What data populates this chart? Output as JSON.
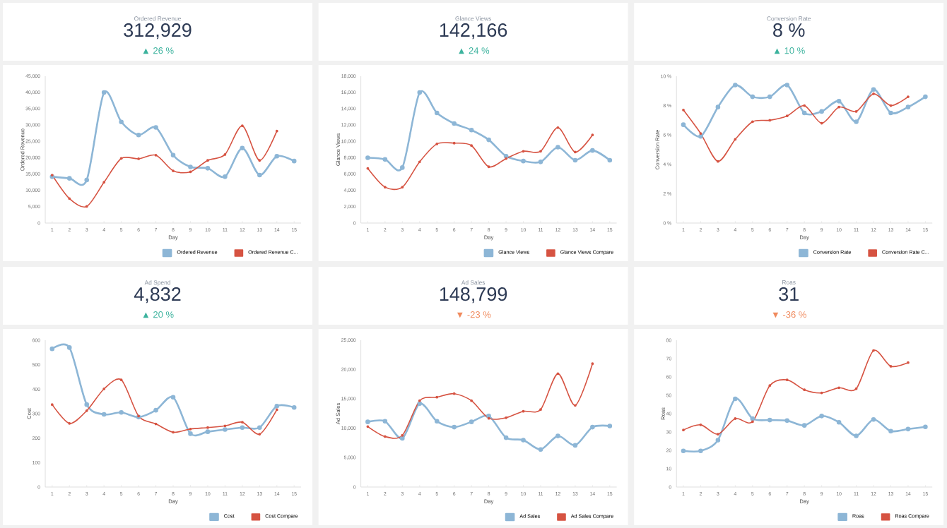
{
  "chart_data": [
    {
      "type": "other",
      "title": "Ordered Revenue",
      "subtitle": "312,929",
      "annotations": [
        "▲ 26 %"
      ],
      "color": "#3db39e"
    },
    {
      "type": "other",
      "title": "Glance Views",
      "subtitle": "142,166",
      "annotations": [
        "▲ 24 %"
      ],
      "color": "#3db39e"
    },
    {
      "type": "other",
      "title": "Conversion Rate",
      "subtitle": "8 %",
      "annotations": [
        "▲ 10 %"
      ],
      "color": "#3db39e"
    },
    {
      "type": "line",
      "xlabel": "Day",
      "ylabel": "Ordered Revenue",
      "categories": [
        "1",
        "2",
        "3",
        "4",
        "5",
        "6",
        "7",
        "8",
        "9",
        "10",
        "11",
        "12",
        "13",
        "14",
        "15"
      ],
      "ylim": [
        0,
        45000
      ],
      "yticks": [
        0,
        {
          "value": 5000,
          "label": "5,000"
        },
        {
          "value": 10000,
          "label": "10,000"
        },
        {
          "value": 15000,
          "label": "15,000"
        },
        {
          "value": 20000,
          "label": "20,000"
        },
        {
          "value": 25000,
          "label": "25,000"
        },
        {
          "value": 30000,
          "label": "30,000"
        },
        {
          "value": 35000,
          "label": "35,000"
        },
        {
          "value": 40000,
          "label": "40,000"
        },
        {
          "value": 45000,
          "label": "45,000"
        }
      ],
      "marker": "circle",
      "legend": "bottom right",
      "series": [
        {
          "name": "Ordered Revenue",
          "color": "#8db6d6",
          "values": [
            14200,
            13700,
            13200,
            40000,
            31000,
            27000,
            29300,
            20800,
            17200,
            16800,
            14200,
            23000,
            14700,
            20500,
            19000
          ]
        },
        {
          "name": "Ordered Revenue C...",
          "color": "#d65342",
          "values": [
            14700,
            7500,
            5100,
            12500,
            19800,
            19700,
            20800,
            16000,
            15700,
            19200,
            21000,
            29800,
            19200,
            28200,
            null
          ]
        }
      ]
    },
    {
      "type": "line",
      "xlabel": "Day",
      "ylabel": "Glance Views",
      "categories": [
        "1",
        "2",
        "3",
        "4",
        "5",
        "6",
        "7",
        "8",
        "9",
        "10",
        "11",
        "12",
        "13",
        "14",
        "15"
      ],
      "ylim": [
        0,
        18000
      ],
      "yticks": [
        0,
        {
          "value": 2000,
          "label": "2,000"
        },
        {
          "value": 4000,
          "label": "4,000"
        },
        {
          "value": 6000,
          "label": "6,000"
        },
        {
          "value": 8000,
          "label": "8,000"
        },
        {
          "value": 10000,
          "label": "10,000"
        },
        {
          "value": 12000,
          "label": "12,000"
        },
        {
          "value": 14000,
          "label": "14,000"
        },
        {
          "value": 16000,
          "label": "16,000"
        },
        {
          "value": 18000,
          "label": "18,000"
        }
      ],
      "marker": "circle",
      "legend": "bottom right",
      "series": [
        {
          "name": "Glance Views",
          "color": "#8db6d6",
          "values": [
            8000,
            7800,
            6800,
            16000,
            13500,
            12200,
            11400,
            10200,
            8200,
            7600,
            7500,
            9300,
            7700,
            8900,
            7700
          ]
        },
        {
          "name": "Glance Views Compare",
          "color": "#d65342",
          "values": [
            6700,
            4400,
            4400,
            7500,
            9700,
            9800,
            9500,
            6900,
            7900,
            8800,
            8800,
            11700,
            8700,
            10800,
            null
          ]
        }
      ]
    },
    {
      "type": "line",
      "xlabel": "Day",
      "ylabel": "Conversion Rate",
      "categories": [
        "1",
        "2",
        "3",
        "4",
        "5",
        "6",
        "7",
        "8",
        "9",
        "10",
        "11",
        "12",
        "13",
        "14",
        "15"
      ],
      "ylim": [
        0,
        10
      ],
      "yticks": [
        {
          "value": 0,
          "label": "0 %"
        },
        {
          "value": 2,
          "label": "2 %"
        },
        {
          "value": 4,
          "label": "4 %"
        },
        {
          "value": 6,
          "label": "6 %"
        },
        {
          "value": 8,
          "label": "8 %"
        },
        {
          "value": 10,
          "label": "10 %"
        }
      ],
      "marker": "circle",
      "legend": "bottom right",
      "series": [
        {
          "name": "Conversion Rate",
          "color": "#8db6d6",
          "values": [
            6.7,
            5.9,
            7.9,
            9.4,
            8.6,
            8.6,
            9.4,
            7.5,
            7.6,
            8.3,
            6.9,
            9.1,
            7.5,
            7.9,
            8.6
          ]
        },
        {
          "name": "Conversion Rate C...",
          "color": "#d65342",
          "values": [
            7.7,
            6.1,
            4.2,
            5.7,
            6.9,
            7.0,
            7.3,
            8.0,
            6.8,
            7.9,
            7.6,
            8.8,
            8.0,
            8.6,
            null
          ]
        }
      ]
    },
    {
      "type": "other",
      "title": "Ad Spend",
      "subtitle": "4,832",
      "annotations": [
        "▲ 20 %"
      ],
      "color": "#3db39e"
    },
    {
      "type": "other",
      "title": "Ad Sales",
      "subtitle": "148,799",
      "annotations": [
        "▼ -23 %"
      ],
      "color": "#f08a5d"
    },
    {
      "type": "other",
      "title": "Roas",
      "subtitle": "31",
      "annotations": [
        "▼ -36 %"
      ],
      "color": "#f08a5d"
    },
    {
      "type": "line",
      "xlabel": "Day",
      "ylabel": "Cost",
      "categories": [
        "1",
        "2",
        "3",
        "4",
        "5",
        "6",
        "7",
        "8",
        "9",
        "10",
        "11",
        "12",
        "13",
        "14",
        "15"
      ],
      "ylim": [
        0,
        600
      ],
      "yticks": [
        0,
        100,
        200,
        300,
        400,
        500,
        600
      ],
      "marker": "circle",
      "legend": "bottom right",
      "series": [
        {
          "name": "Cost",
          "color": "#8db6d6",
          "values": [
            565,
            570,
            337,
            297,
            305,
            286,
            314,
            367,
            218,
            226,
            235,
            243,
            243,
            331,
            325
          ]
        },
        {
          "name": "Cost Compare",
          "color": "#d65342",
          "values": [
            337,
            260,
            312,
            401,
            438,
            290,
            258,
            224,
            237,
            243,
            250,
            265,
            216,
            316,
            null
          ]
        }
      ]
    },
    {
      "type": "line",
      "xlabel": "Day",
      "ylabel": "Ad Sales",
      "categories": [
        "1",
        "2",
        "3",
        "4",
        "5",
        "6",
        "7",
        "8",
        "9",
        "10",
        "11",
        "12",
        "13",
        "14",
        "15"
      ],
      "ylim": [
        0,
        25000
      ],
      "yticks": [
        0,
        {
          "value": 5000,
          "label": "5,000"
        },
        {
          "value": 10000,
          "label": "10,000"
        },
        {
          "value": 15000,
          "label": "15,000"
        },
        {
          "value": 20000,
          "label": "20,000"
        },
        {
          "value": 25000,
          "label": "25,000"
        }
      ],
      "marker": "circle",
      "legend": "bottom right",
      "series": [
        {
          "name": "Ad Sales",
          "color": "#8db6d6",
          "values": [
            11100,
            11200,
            8300,
            14200,
            11200,
            10200,
            11100,
            12100,
            8400,
            8000,
            6400,
            8700,
            7100,
            10200,
            10400
          ]
        },
        {
          "name": "Ad Sales Compare",
          "color": "#d65342",
          "values": [
            10300,
            8600,
            8800,
            14700,
            15300,
            15900,
            14700,
            11700,
            11800,
            12900,
            13200,
            19300,
            13900,
            21000,
            null
          ]
        }
      ]
    },
    {
      "type": "line",
      "xlabel": "Day",
      "ylabel": "Roas",
      "categories": [
        "1",
        "2",
        "3",
        "4",
        "5",
        "6",
        "7",
        "8",
        "9",
        "10",
        "11",
        "12",
        "13",
        "14",
        "15"
      ],
      "ylim": [
        0,
        80
      ],
      "yticks": [
        0,
        10,
        20,
        30,
        40,
        50,
        60,
        70,
        80
      ],
      "marker": "circle",
      "legend": "bottom right",
      "series": [
        {
          "name": "Roas",
          "color": "#8db6d6",
          "values": [
            19.7,
            19.7,
            25.6,
            48.1,
            37.3,
            36.5,
            36.2,
            33.6,
            38.7,
            35.3,
            27.9,
            36.8,
            30.5,
            31.6,
            32.8
          ]
        },
        {
          "name": "Roas Compare",
          "color": "#d65342",
          "values": [
            31.1,
            33.9,
            28.8,
            37.3,
            35.6,
            55.3,
            58.4,
            53.0,
            51.3,
            54.1,
            53.6,
            74.4,
            65.8,
            67.8,
            null
          ]
        }
      ]
    }
  ]
}
